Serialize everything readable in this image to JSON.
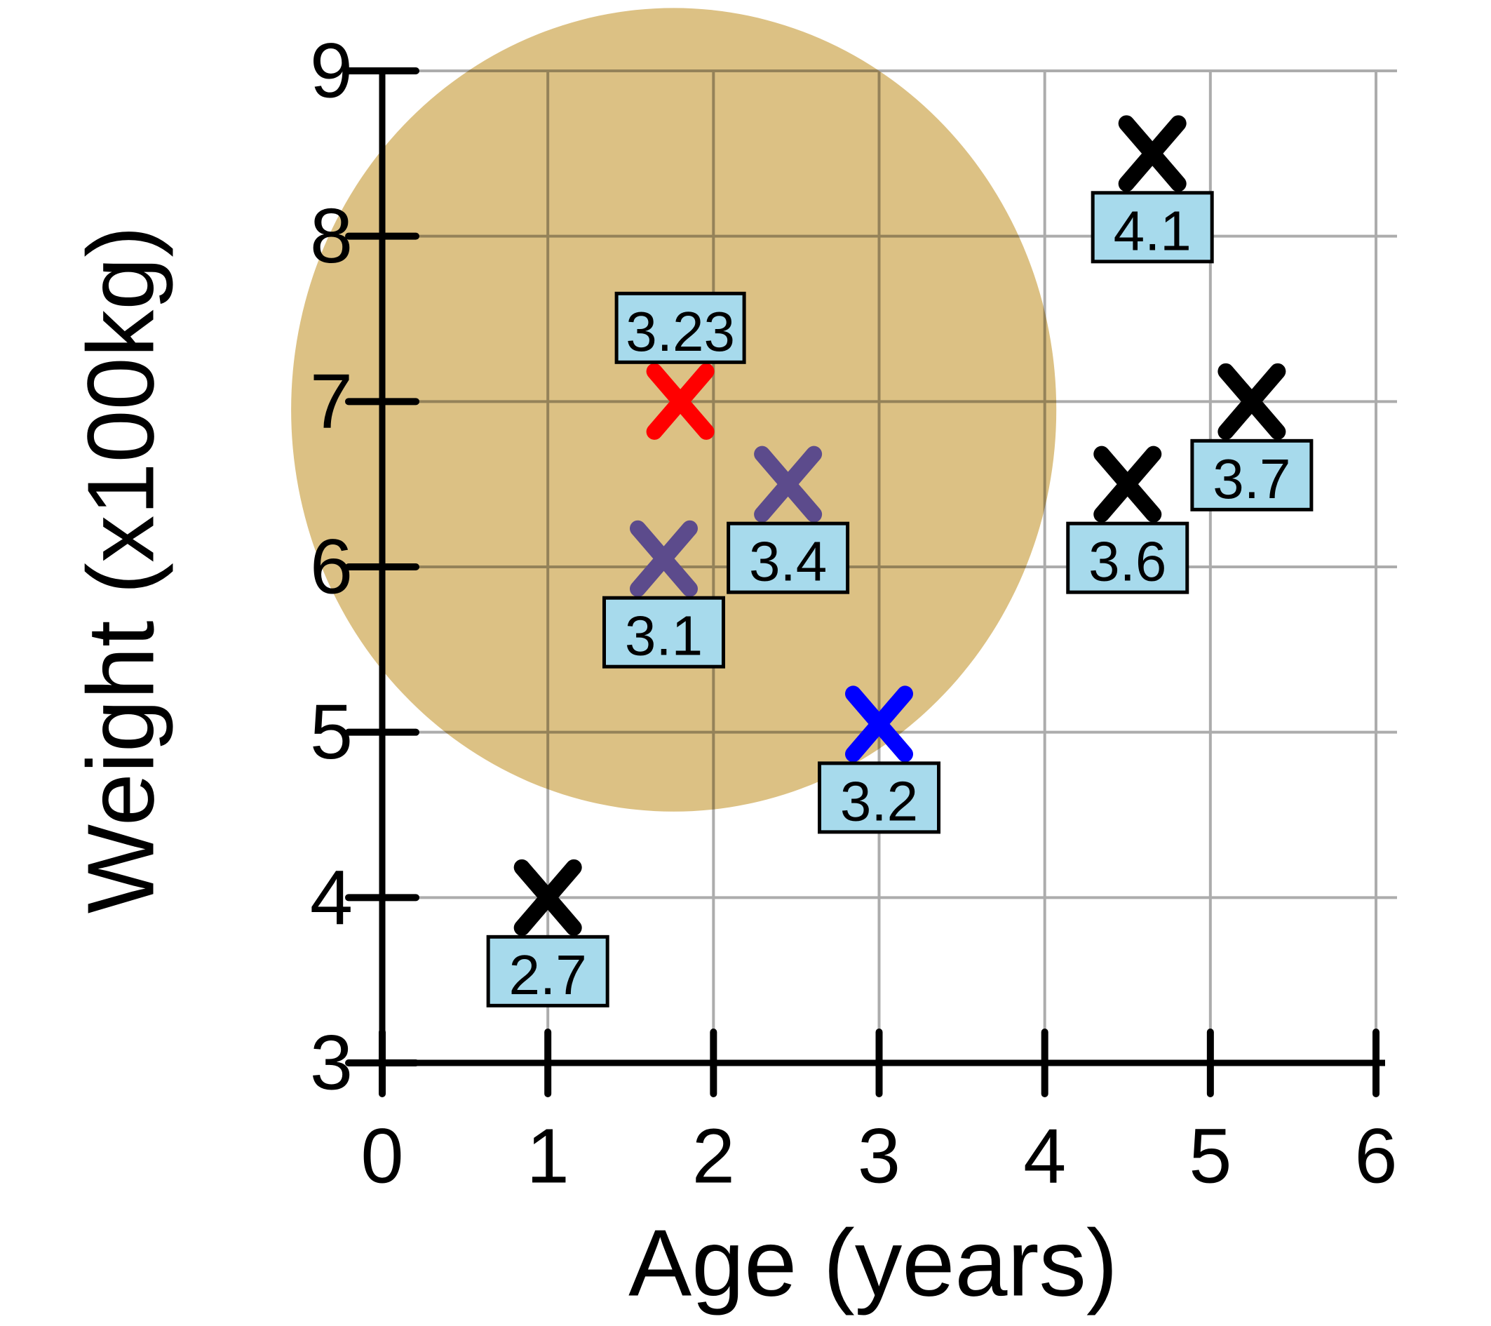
{
  "chart_data": {
    "type": "scatter",
    "title": "",
    "xlabel": "Age (years)",
    "ylabel": "Weight (x100kg)",
    "xlim": [
      0,
      6
    ],
    "ylim": [
      3,
      9
    ],
    "x_ticks": [
      0,
      1,
      2,
      3,
      4,
      5,
      6
    ],
    "y_ticks": [
      3,
      4,
      5,
      6,
      7,
      8,
      9
    ],
    "grid": true,
    "legend": "none",
    "marker": "x",
    "points": [
      {
        "x": 1.0,
        "y": 4.0,
        "label": "2.7",
        "color": "#000000",
        "label_pos": "below"
      },
      {
        "x": 1.7,
        "y": 6.05,
        "label": "3.1",
        "color": "#5C4B8C",
        "label_pos": "below"
      },
      {
        "x": 1.8,
        "y": 7.0,
        "label": "3.23",
        "color": "#FF0000",
        "label_pos": "above"
      },
      {
        "x": 2.45,
        "y": 6.5,
        "label": "3.4",
        "color": "#5C4B8C",
        "label_pos": "below"
      },
      {
        "x": 3.0,
        "y": 5.05,
        "label": "3.2",
        "color": "#0000FF",
        "label_pos": "below"
      },
      {
        "x": 4.5,
        "y": 6.5,
        "label": "3.6",
        "color": "#000000",
        "label_pos": "below"
      },
      {
        "x": 4.65,
        "y": 8.5,
        "label": "4.1",
        "color": "#000000",
        "label_pos": "below"
      },
      {
        "x": 5.25,
        "y": 7.0,
        "label": "3.7",
        "color": "#000000",
        "label_pos": "below"
      }
    ],
    "highlight_ellipse": {
      "cx": 1.76,
      "cy": 6.95,
      "rx": 2.31,
      "ry": 2.43,
      "fill": "#DCC184"
    },
    "colors": {
      "background": "#FFFFFF",
      "grid": "#ACACAC",
      "axis": "#000000",
      "label_box_fill": "#A7DAEC",
      "label_box_border": "#000000",
      "marker_black": "#000000",
      "marker_red": "#FF0000",
      "marker_purple": "#5C4B8C",
      "marker_blue": "#0000FF"
    }
  }
}
